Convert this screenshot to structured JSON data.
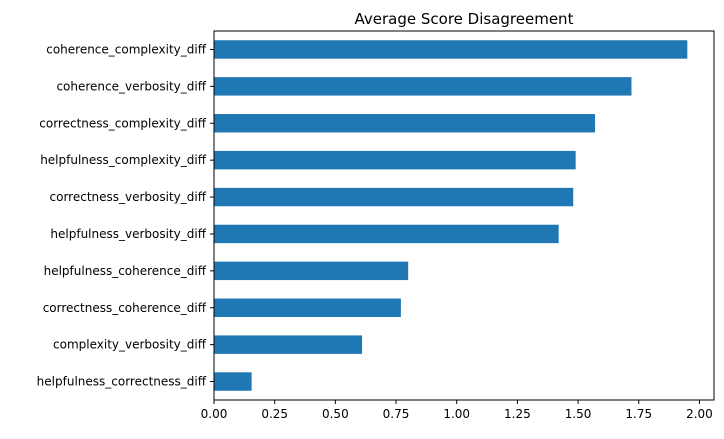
{
  "chart_data": {
    "type": "bar",
    "orientation": "horizontal",
    "title": "Average Score Disagreement",
    "xlabel": "",
    "ylabel": "",
    "xlim": [
      0,
      2.06
    ],
    "x_ticks": [
      "0.00",
      "0.25",
      "0.50",
      "0.75",
      "1.00",
      "1.25",
      "1.50",
      "1.75",
      "2.00"
    ],
    "categories": [
      "coherence_complexity_diff",
      "coherence_verbosity_diff",
      "correctness_complexity_diff",
      "helpfulness_complexity_diff",
      "correctness_verbosity_diff",
      "helpfulness_verbosity_diff",
      "helpfulness_coherence_diff",
      "correctness_coherence_diff",
      "complexity_verbosity_diff",
      "helpfulness_correctness_diff"
    ],
    "values": [
      1.95,
      1.72,
      1.57,
      1.49,
      1.48,
      1.42,
      0.8,
      0.77,
      0.61,
      0.155
    ],
    "bar_color": "#1f77b4",
    "grid": false,
    "legend": "none"
  }
}
